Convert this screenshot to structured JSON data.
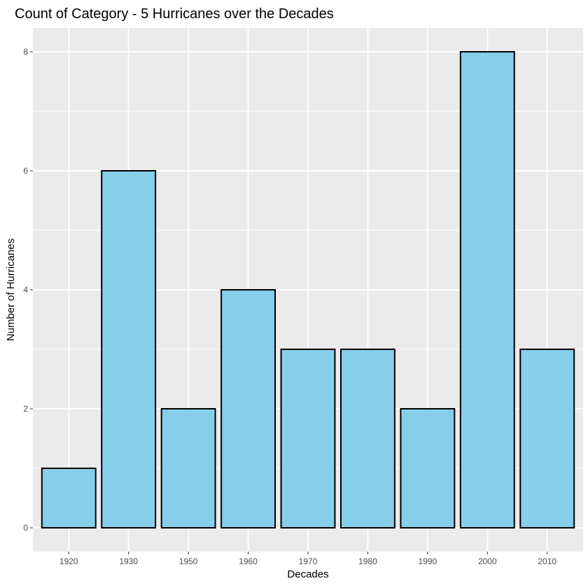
{
  "chart_data": {
    "type": "bar",
    "title": "Count of Category - 5 Hurricanes over the Decades",
    "xlabel": "Decades",
    "ylabel": "Number of Hurricanes",
    "categories": [
      "1920",
      "1930",
      "1950",
      "1960",
      "1970",
      "1980",
      "1990",
      "2000",
      "2010"
    ],
    "values": [
      1,
      6,
      2,
      4,
      3,
      3,
      2,
      8,
      3
    ],
    "yticks": [
      "0",
      "2",
      "4",
      "6",
      "8"
    ],
    "ylim": [
      -0.4,
      8.4
    ],
    "grid": true,
    "legend": "none",
    "colors": {
      "bar_fill": "#87CEEB",
      "bar_stroke": "#000000",
      "panel_bg": "#EBEBEB",
      "grid_major": "#FFFFFF"
    }
  }
}
